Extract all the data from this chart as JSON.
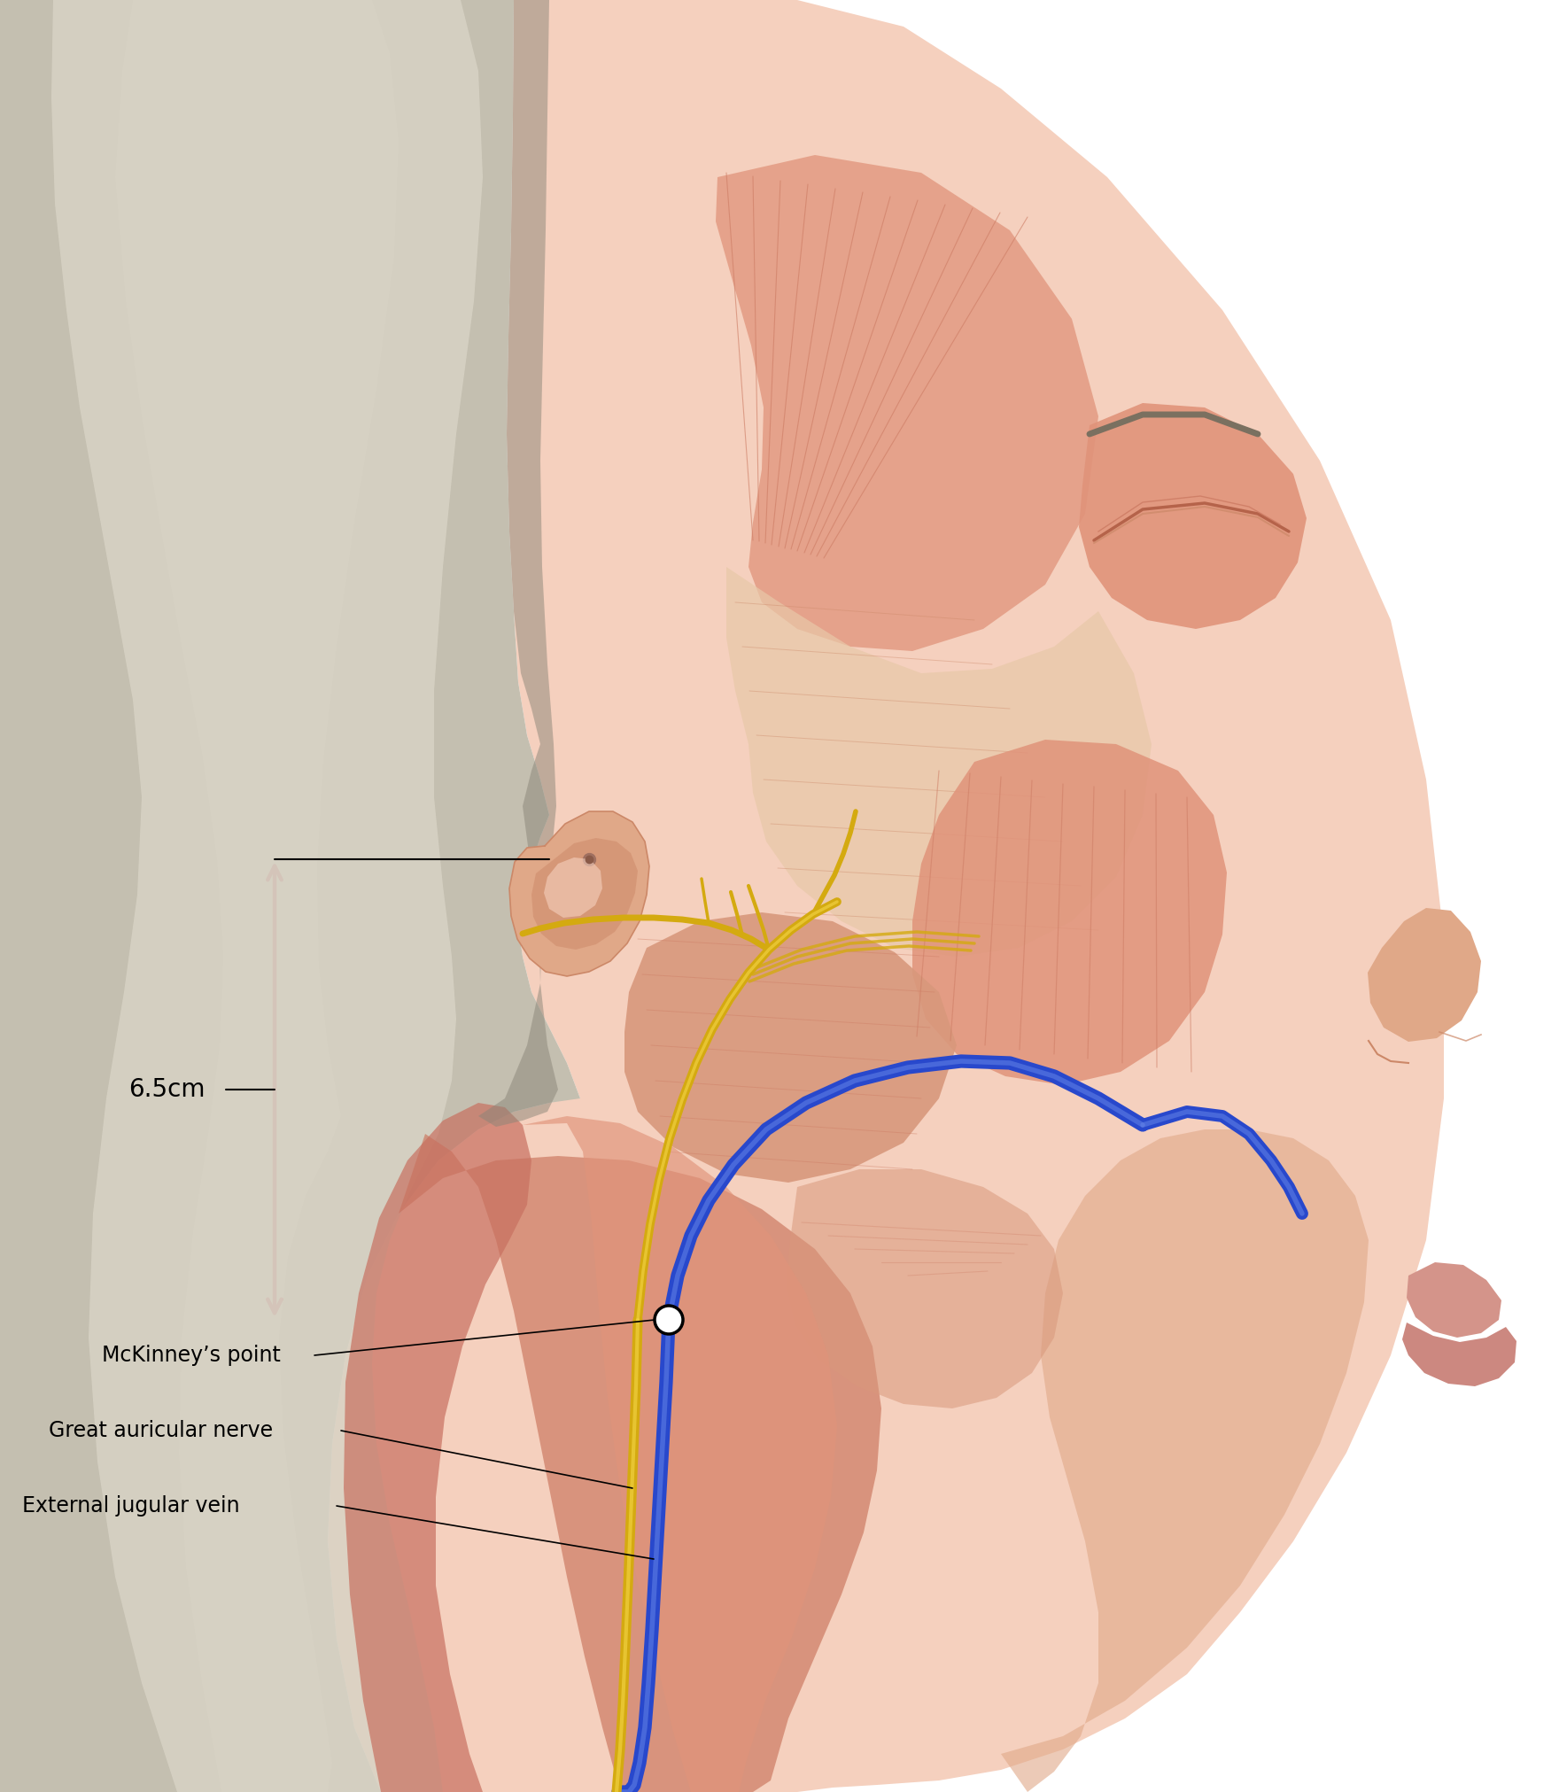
{
  "fig_width": 17.6,
  "fig_height": 20.23,
  "dpi": 100,
  "bg": "#ffffff",
  "arrow_color": "#AA0020",
  "label_fs": 17,
  "meas_fs": 20,
  "labels": [
    "McKinney’s point",
    "Great auricular nerve",
    "External jugular vein"
  ],
  "meas_label": "6.5cm",
  "skin_base": "#EEBBAA",
  "skin_light": "#F5D0BE",
  "skin_mid": "#E0A888",
  "skin_dark": "#CC8868",
  "hair_light": "#D8D3C5",
  "hair_mid": "#C4BFB0",
  "hair_dark": "#A8A295",
  "hair_shadow": "#8A8578",
  "muscle_light": "#E0937A",
  "muscle_mid": "#CC7A62",
  "muscle_dark": "#B5634A",
  "parotid_col": "#D8987C",
  "fascia_col": "#E8C8A8",
  "vein_col": "#2848CC",
  "vein_hi": "#6888E8",
  "nerve_col": "#D4AA10",
  "nerve_hi": "#F0D040",
  "black": "#000000",
  "scm_col": "#C87060"
}
